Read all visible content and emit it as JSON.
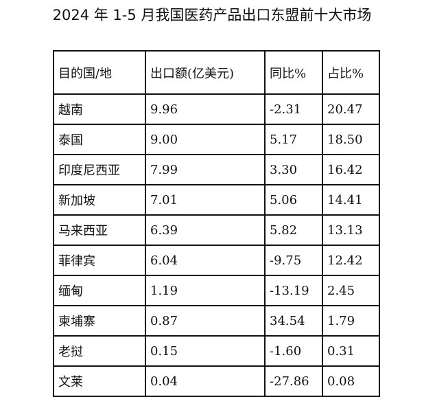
{
  "title": "2024 年 1-5 月我国医药产品出口东盟前十大市场",
  "table": {
    "headers": [
      "目的国/地",
      "出口额(亿美元)",
      "同比%",
      "占比%"
    ],
    "rows": [
      [
        "越南",
        "9.96",
        "-2.31",
        "20.47"
      ],
      [
        "泰国",
        "9.00",
        "5.17",
        "18.50"
      ],
      [
        "印度尼西亚",
        "7.99",
        "3.30",
        "16.42"
      ],
      [
        "新加坡",
        "7.01",
        "5.06",
        "14.41"
      ],
      [
        "马来西亚",
        "6.39",
        "5.82",
        "13.13"
      ],
      [
        "菲律宾",
        "6.04",
        "-9.75",
        "12.42"
      ],
      [
        "缅甸",
        "1.19",
        "-13.19",
        "2.45"
      ],
      [
        "柬埔寨",
        "0.87",
        "34.54",
        "1.79"
      ],
      [
        "老挝",
        "0.15",
        "-1.60",
        "0.31"
      ],
      [
        "文莱",
        "0.04",
        "-27.86",
        "0.08"
      ]
    ]
  }
}
